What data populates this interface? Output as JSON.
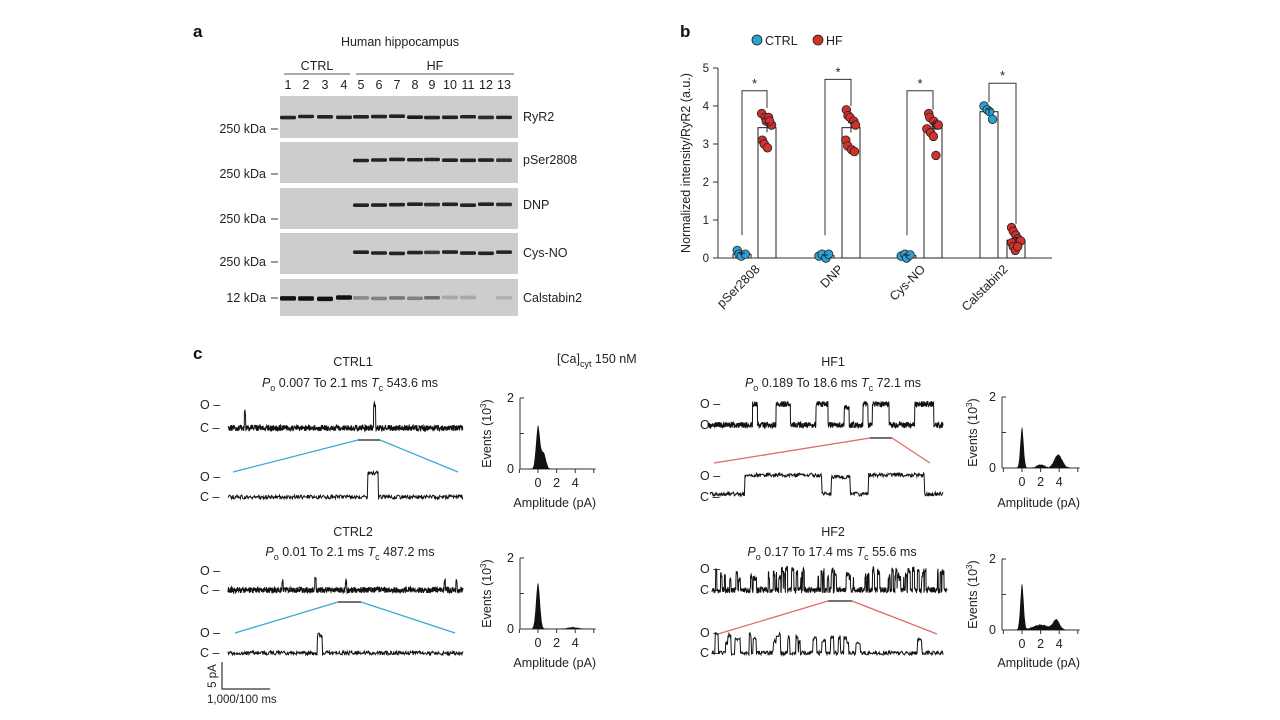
{
  "panel_a": {
    "label": "a",
    "title": "Human hippocampus",
    "groups": [
      {
        "name": "CTRL"
      },
      {
        "name": "HF"
      }
    ],
    "lanes": [
      "1",
      "2",
      "3",
      "4",
      "5",
      "6",
      "7",
      "8",
      "9",
      "10",
      "11",
      "12",
      "13"
    ],
    "blots": [
      {
        "name": "RyR2",
        "marker": "250 kDa",
        "intensity": [
          0.9,
          0.9,
          0.9,
          0.9,
          0.9,
          0.9,
          0.9,
          0.95,
          0.9,
          0.9,
          0.9,
          0.85,
          0.9
        ]
      },
      {
        "name": "pSer2808",
        "marker": "250 kDa",
        "intensity": [
          0,
          0,
          0,
          0,
          0.9,
          0.9,
          0.9,
          0.9,
          0.9,
          0.9,
          0.9,
          0.9,
          0.8
        ]
      },
      {
        "name": "DNP",
        "marker": "250 kDa",
        "intensity": [
          0,
          0,
          0,
          0,
          0.9,
          0.9,
          0.9,
          0.9,
          0.85,
          0.9,
          0.9,
          0.9,
          0.85
        ]
      },
      {
        "name": "Cys-NO",
        "marker": "250 kDa",
        "intensity": [
          0,
          0,
          0,
          0,
          0.9,
          0.9,
          0.9,
          0.9,
          0.8,
          0.9,
          0.9,
          0.9,
          0.9
        ]
      },
      {
        "name": "Calstabin2",
        "marker": "12 kDa",
        "intensity": [
          1,
          1,
          1,
          1,
          0.35,
          0.4,
          0.45,
          0.4,
          0.5,
          0.2,
          0.2,
          0,
          0.15
        ]
      }
    ]
  },
  "panel_b": {
    "label": "b"
  },
  "chart_data": {
    "type": "bar",
    "categories": [
      "pSer2808",
      "DNP",
      "Cys-NO",
      "Calstabin2"
    ],
    "ylabel": "Normalized intensity/RyR2 (a.u.)",
    "ylim": [
      0,
      5
    ],
    "yticks": [
      "0",
      "1",
      "2",
      "3",
      "4",
      "5"
    ],
    "grid": false,
    "legend": {
      "position": "top",
      "entries": [
        "CTRL",
        "HF"
      ]
    },
    "colors": {
      "CTRL": "#2aa0d4",
      "HF": "#d0312d"
    },
    "significance": [
      "*",
      "*",
      "*",
      "*"
    ],
    "series": [
      {
        "name": "CTRL",
        "means": [
          0.1,
          0.06,
          0.06,
          3.85
        ],
        "sem": [
          0.03,
          0.02,
          0.02,
          0.07
        ],
        "points": [
          [
            0.2,
            0.1,
            0.05,
            0.1
          ],
          [
            0.05,
            0.1,
            0.0,
            0.1
          ],
          [
            0.05,
            0.1,
            0.0,
            0.08
          ],
          [
            4.0,
            3.9,
            3.85,
            3.65
          ]
        ]
      },
      {
        "name": "HF",
        "means": [
          3.43,
          3.43,
          3.45,
          0.47
        ],
        "sem": [
          0.12,
          0.13,
          0.1,
          0.07
        ],
        "points": [
          [
            3.8,
            3.7,
            3.6,
            3.7,
            3.5,
            3.1,
            3.0,
            2.9,
            3.6
          ],
          [
            3.9,
            3.75,
            3.7,
            3.6,
            3.5,
            3.1,
            2.95,
            2.85,
            2.8
          ],
          [
            3.8,
            3.7,
            3.6,
            3.5,
            3.5,
            3.4,
            3.3,
            3.2,
            2.7
          ],
          [
            0.8,
            0.7,
            0.6,
            0.5,
            0.45,
            0.4,
            0.3,
            0.2,
            0.3
          ]
        ]
      }
    ]
  },
  "panel_c": {
    "label": "c",
    "condition": {
      "prefix": "[Ca]",
      "sub": "cyt",
      "value": " 150 nM"
    },
    "state_open": "O –",
    "state_closed": "C –",
    "symbols": {
      "po": "P",
      "po_sub": "o",
      "to": "To",
      "tc": "T",
      "tc_sub": "c"
    },
    "recordings": [
      {
        "name": "CTRL1",
        "group": "CTRL",
        "po": "0.007",
        "to": "2.1 ms",
        "tc": "543.6 ms"
      },
      {
        "name": "CTRL2",
        "group": "CTRL",
        "po": "0.01",
        "to": "2.1 ms",
        "tc": "487.2 ms"
      },
      {
        "name": "HF1",
        "group": "HF",
        "po": "0.189",
        "to": "18.6 ms",
        "tc": "72.1 ms"
      },
      {
        "name": "HF2",
        "group": "HF",
        "po": "0.17",
        "to": "17.4 ms",
        "tc": "55.6 ms"
      }
    ],
    "histogram": {
      "ylabel": "Events (10",
      "ylabel_sup": "3",
      "ylabel_end": ")",
      "yticks": [
        "0",
        "2"
      ],
      "xticks": [
        "0",
        "2",
        "4"
      ],
      "xlabel": "Amplitude (pA)"
    },
    "scale_bar": {
      "current": "5 pA",
      "time": "1,000/100 ms"
    },
    "colors": {
      "CTRL": "#3aa9d2",
      "HF": "#e06a66"
    }
  }
}
